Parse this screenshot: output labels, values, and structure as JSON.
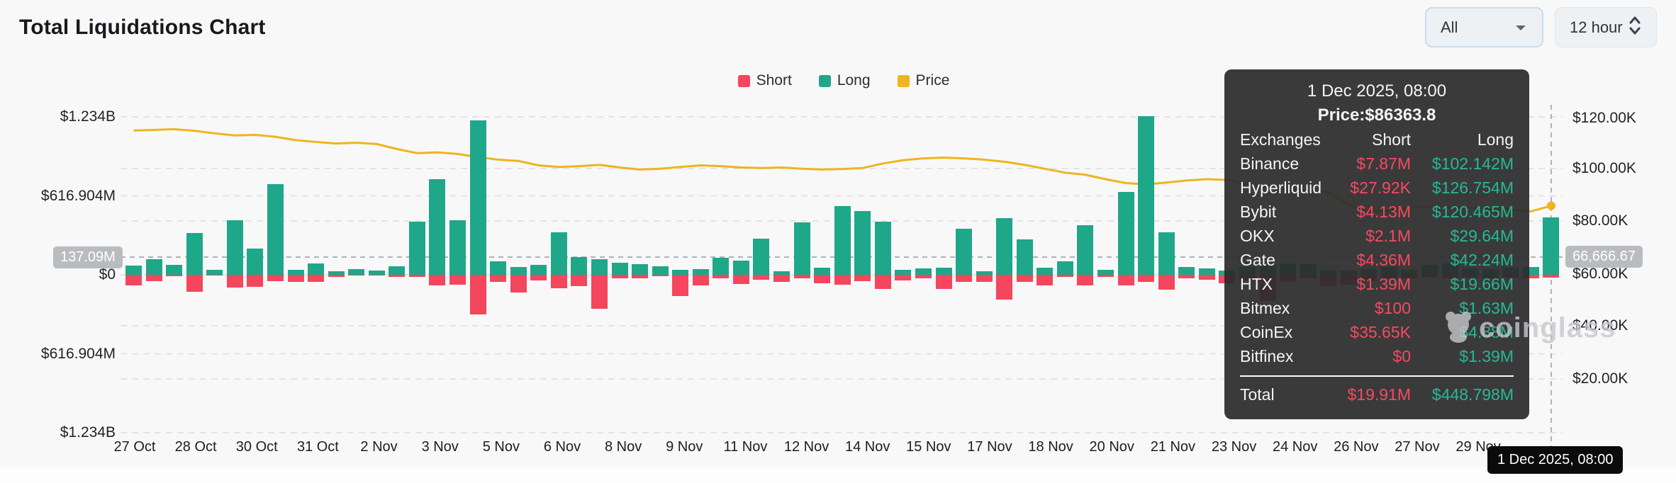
{
  "header": {
    "title": "Total Liquidations Chart"
  },
  "controls": {
    "coin_select": {
      "value": "All",
      "icon": "caret-down-icon"
    },
    "interval_select": {
      "value": "12 hour",
      "icon": "chevron-up-down-icon"
    }
  },
  "legend": [
    {
      "label": "Short",
      "color": "#f4465c"
    },
    {
      "label": "Long",
      "color": "#1fa78a"
    },
    {
      "label": "Price",
      "color": "#efb41f"
    }
  ],
  "axes": {
    "left_tick_labels": [
      "$1.234B",
      "$616.904M",
      "$0",
      "$616.904M",
      "$1.234B"
    ],
    "right_tick_labels": [
      "$120.00K",
      "$100.00K",
      "$80.00K",
      "$60.00K",
      "$40.00K",
      "$20.00K"
    ],
    "x_tick_labels": [
      "27 Oct",
      "28 Oct",
      "30 Oct",
      "31 Oct",
      "2 Nov",
      "3 Nov",
      "5 Nov",
      "6 Nov",
      "8 Nov",
      "9 Nov",
      "11 Nov",
      "12 Nov",
      "14 Nov",
      "15 Nov",
      "17 Nov",
      "18 Nov",
      "20 Nov",
      "21 Nov",
      "23 Nov",
      "24 Nov",
      "26 Nov",
      "27 Nov",
      "29 Nov"
    ]
  },
  "crosshair": {
    "left_axis_value": "137.09M",
    "right_axis_value": "66,666.67",
    "x_axis_value": "1 Dec 2025, 08:00"
  },
  "tooltip": {
    "title": "1 Dec 2025, 08:00",
    "price_line": "Price:$86363.8",
    "columns": [
      "Exchanges",
      "Short",
      "Long"
    ],
    "rows": [
      [
        "Binance",
        "$7.87M",
        "$102.142M"
      ],
      [
        "Hyperliquid",
        "$27.92K",
        "$126.754M"
      ],
      [
        "Bybit",
        "$4.13M",
        "$120.465M"
      ],
      [
        "OKX",
        "$2.1M",
        "$29.64M"
      ],
      [
        "Gate",
        "$4.36M",
        "$42.24M"
      ],
      [
        "HTX",
        "$1.39M",
        "$19.66M"
      ],
      [
        "Bitmex",
        "$100",
        "$1.63M"
      ],
      [
        "CoinEx",
        "$35.65K",
        "$4.88M"
      ],
      [
        "Bitfinex",
        "$0",
        "$1.39M"
      ]
    ],
    "total_row": [
      "Total",
      "$19.91M",
      "$448.798M"
    ]
  },
  "watermark": {
    "text": "coinglass"
  },
  "chart_data": {
    "type": "bar",
    "title": "Total Liquidations Chart",
    "interval": "12 hour",
    "x_tick_labels": [
      "27 Oct",
      "28 Oct",
      "30 Oct",
      "31 Oct",
      "2 Nov",
      "3 Nov",
      "5 Nov",
      "6 Nov",
      "8 Nov",
      "9 Nov",
      "11 Nov",
      "12 Nov",
      "14 Nov",
      "15 Nov",
      "17 Nov",
      "18 Nov",
      "20 Nov",
      "21 Nov",
      "23 Nov",
      "24 Nov",
      "26 Nov",
      "27 Nov",
      "29 Nov"
    ],
    "left_axis": {
      "tick_labels": [
        "$1.234B",
        "$616.904M",
        "$0",
        "$616.904M",
        "$1.234B"
      ],
      "range_millions": [
        -1234,
        1234
      ],
      "grid": true
    },
    "right_axis": {
      "tick_labels": [
        "$120.00K",
        "$100.00K",
        "$80.00K",
        "$60.00K",
        "$40.00K",
        "$20.00K"
      ],
      "range_thousands": [
        0,
        135.7
      ],
      "grid": true
    },
    "legend_position": "top-center",
    "series": [
      {
        "name": "Long",
        "color": "#1fa78a",
        "unit": "USD millions",
        "values": [
          72,
          122,
          77,
          327,
          39,
          426,
          205,
          708,
          39,
          90,
          28,
          44,
          33,
          68,
          417,
          749,
          426,
          1206,
          105,
          60,
          77,
          334,
          138,
          122,
          94,
          83,
          66,
          40,
          44,
          133,
          112,
          284,
          29,
          410,
          55,
          537,
          498,
          415,
          39,
          50,
          57,
          361,
          28,
          444,
          278,
          55,
          105,
          387,
          39,
          647,
          1238,
          334,
          63,
          50,
          35,
          63,
          83,
          90,
          85,
          40,
          35,
          45,
          60,
          40,
          75,
          90,
          50,
          45,
          55,
          60,
          448.8
        ]
      },
      {
        "name": "Short",
        "color": "#f4465c",
        "unit": "USD millions",
        "values": [
          83,
          48,
          10,
          131,
          6,
          100,
          94,
          48,
          55,
          55,
          15,
          6,
          6,
          15,
          15,
          85,
          76,
          312,
          55,
          137,
          44,
          103,
          89,
          266,
          26,
          26,
          11,
          164,
          81,
          28,
          72,
          39,
          55,
          30,
          66,
          76,
          50,
          109,
          44,
          28,
          109,
          55,
          55,
          192,
          55,
          81,
          17,
          83,
          17,
          81,
          55,
          116,
          28,
          39,
          66,
          39,
          205,
          55,
          30,
          90,
          75,
          50,
          30,
          25,
          20,
          25,
          20,
          25,
          20,
          30,
          19.91
        ]
      }
    ],
    "price_line": {
      "name": "Price",
      "color": "#efb41f",
      "unit": "USD thousands",
      "values": [
        115.3,
        115.5,
        115.8,
        115.2,
        114.2,
        113.4,
        113.6,
        112.9,
        111.6,
        110.9,
        110.3,
        110.6,
        110.1,
        108.2,
        106.6,
        106.9,
        106.3,
        105.1,
        104.1,
        103.6,
        101.9,
        101.3,
        101.6,
        102.1,
        101.1,
        100.3,
        100.6,
        101.3,
        101.9,
        101.6,
        101.1,
        100.9,
        101.1,
        100.6,
        100.3,
        100.5,
        100.9,
        102.6,
        103.9,
        104.6,
        104.9,
        104.6,
        104.1,
        103.3,
        102.1,
        100.6,
        99.1,
        98.3,
        96.6,
        95.1,
        94.6,
        95.3,
        96.1,
        96.6,
        96.3,
        94.6,
        93.1,
        92.6,
        92.1,
        91.6,
        86.6,
        84.1,
        84.6,
        85.6,
        86.1,
        85.9,
        85.6,
        85.3,
        85.1,
        84.2,
        86.4
      ]
    },
    "hovered_bar_index": 70,
    "hovered_bar_price": 86363.8
  },
  "ui_colors": {
    "background": "#f8f8f9",
    "short": "#f4465c",
    "long": "#1fa78a",
    "price": "#efb41f",
    "tooltip_bg": "#2b2b2c",
    "crosshair_badge_bg": "#b9bcbf",
    "x_badge_bg": "#0b0b0c"
  }
}
